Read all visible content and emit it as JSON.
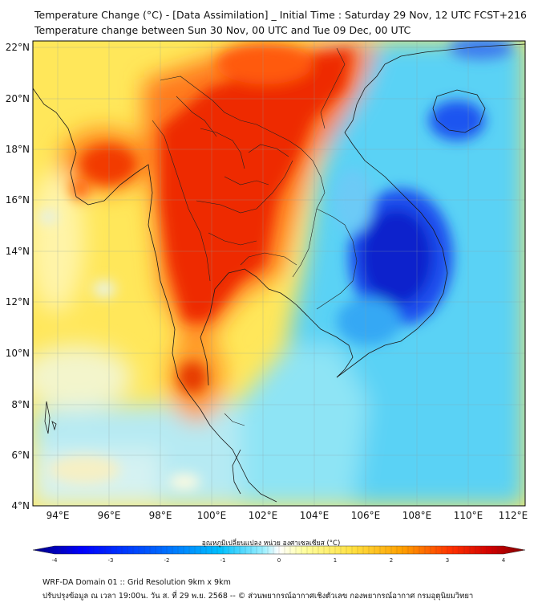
{
  "title_line1": "Temperature Change (°C) - [Data Assimilation] _ Initial Time : Saturday 29 Nov, 12 UTC FCST+216",
  "title_line2": "Temperature change between Sun 30 Nov, 00 UTC and Tue 09 Dec, 00 UTC",
  "lat_labels": [
    "22°N",
    "20°N",
    "18°N",
    "16°N",
    "14°N",
    "12°N",
    "10°N",
    "8°N",
    "6°N",
    "4°N"
  ],
  "lon_labels": [
    "94°E",
    "96°E",
    "98°E",
    "100°E",
    "102°E",
    "104°E",
    "106°E",
    "108°E",
    "110°E",
    "112°E"
  ],
  "colorbar": {
    "label": "อุณหภูมิเปลี่ยนแปลง หน่วย องศาเซลเซียส (°C)",
    "ticks": [
      "-4",
      "-3",
      "-2",
      "-1",
      "0",
      "1",
      "2",
      "3",
      "4"
    ],
    "min": -4,
    "max": 4,
    "colors": [
      "#00007f",
      "#0000ff",
      "#0060ff",
      "#00b4ff",
      "#40e0ff",
      "#a0f0ff",
      "#ffffff",
      "#ffffa0",
      "#ffe040",
      "#ffa000",
      "#ff4000",
      "#e00000",
      "#800000"
    ]
  },
  "footer_line1": "WRF-DA Domain 01 :: Grid Resolution 9km x 9km",
  "footer_line2": "ปรับปรุงข้อมูล ณ เวลา 19:00น. วัน ส. ที่ 29 พ.ย. 2568 -- © ส่วนพยากรณ์อากาศเชิงตัวเลข กองพยากรณ์อากาศ กรมอุตุนิยมวิทยา"
}
